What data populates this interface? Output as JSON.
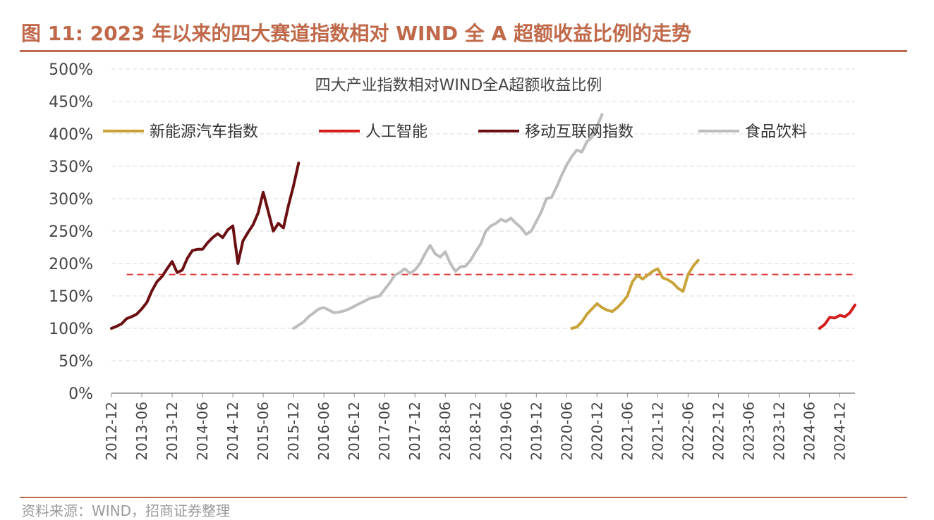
{
  "figure": {
    "title": "图 11: 2023 年以来的四大赛道指数相对 WIND 全 A 超额收益比例的走势",
    "source": "资料来源：WIND，招商证券整理"
  },
  "chart_data": {
    "type": "line",
    "title": "四大产业指数相对WIND全A超额收益比例",
    "xlabel": "",
    "ylabel": "",
    "ylim": [
      0,
      500
    ],
    "y_ticks": [
      "0%",
      "50%",
      "100%",
      "150%",
      "200%",
      "250%",
      "300%",
      "350%",
      "400%",
      "450%",
      "500%"
    ],
    "x_ticks": [
      "2012-12",
      "2013-06",
      "2013-12",
      "2014-06",
      "2014-12",
      "2015-06",
      "2015-12",
      "2016-06",
      "2016-12",
      "2017-06",
      "2017-12",
      "2018-06",
      "2018-12",
      "2019-06",
      "2019-12",
      "2020-06",
      "2020-12",
      "2021-06",
      "2021-12",
      "2022-06",
      "2022-12",
      "2023-06",
      "2023-12",
      "2024-06",
      "2024-12"
    ],
    "grid": true,
    "legend_position": "top",
    "series": [
      {
        "name": "新能源汽车指数",
        "color": "#C9A33A",
        "points": [
          [
            "2020-07",
            100
          ],
          [
            "2020-08",
            102
          ],
          [
            "2020-09",
            110
          ],
          [
            "2020-10",
            122
          ],
          [
            "2020-11",
            130
          ],
          [
            "2020-12",
            138
          ],
          [
            "2021-01",
            132
          ],
          [
            "2021-02",
            128
          ],
          [
            "2021-03",
            126
          ],
          [
            "2021-04",
            132
          ],
          [
            "2021-05",
            140
          ],
          [
            "2021-06",
            150
          ],
          [
            "2021-07",
            172
          ],
          [
            "2021-08",
            182
          ],
          [
            "2021-09",
            176
          ],
          [
            "2021-10",
            182
          ],
          [
            "2021-11",
            188
          ],
          [
            "2021-12",
            192
          ],
          [
            "2022-01",
            178
          ],
          [
            "2022-02",
            175
          ],
          [
            "2022-03",
            170
          ],
          [
            "2022-04",
            162
          ],
          [
            "2022-05",
            157
          ],
          [
            "2022-06",
            183
          ],
          [
            "2022-07",
            196
          ],
          [
            "2022-08",
            205
          ]
        ]
      },
      {
        "name": "人工智能",
        "color": "#D41E1E",
        "points": [
          [
            "2024-08",
            100
          ],
          [
            "2024-09",
            106
          ],
          [
            "2024-10",
            117
          ],
          [
            "2024-11",
            116
          ],
          [
            "2024-12",
            120
          ],
          [
            "2025-01",
            118
          ],
          [
            "2025-02",
            124
          ],
          [
            "2025-03",
            136
          ]
        ]
      },
      {
        "name": "移动互联网指数",
        "color": "#6B0F12",
        "points": [
          [
            "2012-12",
            100
          ],
          [
            "2013-01",
            103
          ],
          [
            "2013-02",
            107
          ],
          [
            "2013-03",
            115
          ],
          [
            "2013-04",
            118
          ],
          [
            "2013-05",
            122
          ],
          [
            "2013-06",
            130
          ],
          [
            "2013-07",
            140
          ],
          [
            "2013-08",
            158
          ],
          [
            "2013-09",
            172
          ],
          [
            "2013-10",
            180
          ],
          [
            "2013-11",
            192
          ],
          [
            "2013-12",
            203
          ],
          [
            "2014-01",
            186
          ],
          [
            "2014-02",
            190
          ],
          [
            "2014-03",
            208
          ],
          [
            "2014-04",
            220
          ],
          [
            "2014-05",
            222
          ],
          [
            "2014-06",
            222
          ],
          [
            "2014-07",
            232
          ],
          [
            "2014-08",
            240
          ],
          [
            "2014-09",
            246
          ],
          [
            "2014-10",
            240
          ],
          [
            "2014-11",
            252
          ],
          [
            "2014-12",
            258
          ],
          [
            "2015-01",
            200
          ],
          [
            "2015-02",
            235
          ],
          [
            "2015-03",
            248
          ],
          [
            "2015-04",
            260
          ],
          [
            "2015-05",
            278
          ],
          [
            "2015-06",
            310
          ],
          [
            "2015-07",
            280
          ],
          [
            "2015-08",
            250
          ],
          [
            "2015-09",
            262
          ],
          [
            "2015-10",
            255
          ],
          [
            "2015-11",
            290
          ],
          [
            "2015-12",
            320
          ],
          [
            "2016-01",
            355
          ]
        ]
      },
      {
        "name": "食品饮料",
        "color": "#BDBDBD",
        "points": [
          [
            "2015-12",
            100
          ],
          [
            "2016-01",
            105
          ],
          [
            "2016-02",
            110
          ],
          [
            "2016-03",
            118
          ],
          [
            "2016-04",
            124
          ],
          [
            "2016-05",
            130
          ],
          [
            "2016-06",
            132
          ],
          [
            "2016-07",
            128
          ],
          [
            "2016-08",
            124
          ],
          [
            "2016-09",
            125
          ],
          [
            "2016-10",
            127
          ],
          [
            "2016-11",
            130
          ],
          [
            "2016-12",
            134
          ],
          [
            "2017-01",
            138
          ],
          [
            "2017-02",
            142
          ],
          [
            "2017-03",
            146
          ],
          [
            "2017-04",
            148
          ],
          [
            "2017-05",
            150
          ],
          [
            "2017-06",
            160
          ],
          [
            "2017-07",
            170
          ],
          [
            "2017-08",
            182
          ],
          [
            "2017-09",
            186
          ],
          [
            "2017-10",
            192
          ],
          [
            "2017-11",
            185
          ],
          [
            "2017-12",
            190
          ],
          [
            "2018-01",
            200
          ],
          [
            "2018-02",
            215
          ],
          [
            "2018-03",
            228
          ],
          [
            "2018-04",
            215
          ],
          [
            "2018-05",
            210
          ],
          [
            "2018-06",
            218
          ],
          [
            "2018-07",
            200
          ],
          [
            "2018-08",
            188
          ],
          [
            "2018-09",
            195
          ],
          [
            "2018-10",
            196
          ],
          [
            "2018-11",
            205
          ],
          [
            "2018-12",
            218
          ],
          [
            "2019-01",
            230
          ],
          [
            "2019-02",
            250
          ],
          [
            "2019-03",
            258
          ],
          [
            "2019-04",
            262
          ],
          [
            "2019-05",
            268
          ],
          [
            "2019-06",
            265
          ],
          [
            "2019-07",
            270
          ],
          [
            "2019-08",
            262
          ],
          [
            "2019-09",
            255
          ],
          [
            "2019-10",
            245
          ],
          [
            "2019-11",
            250
          ],
          [
            "2019-12",
            265
          ],
          [
            "2020-01",
            280
          ],
          [
            "2020-02",
            300
          ],
          [
            "2020-03",
            302
          ],
          [
            "2020-04",
            318
          ],
          [
            "2020-05",
            336
          ],
          [
            "2020-06",
            352
          ],
          [
            "2020-07",
            365
          ],
          [
            "2020-08",
            375
          ],
          [
            "2020-09",
            372
          ],
          [
            "2020-10",
            388
          ],
          [
            "2020-11",
            395
          ],
          [
            "2020-12",
            412
          ],
          [
            "2021-01",
            430
          ]
        ]
      }
    ],
    "reference_lines": [
      {
        "start": "2013-03",
        "end": "2025-03",
        "value": 183,
        "color": "#E23A3A",
        "style": "dashed"
      }
    ]
  }
}
